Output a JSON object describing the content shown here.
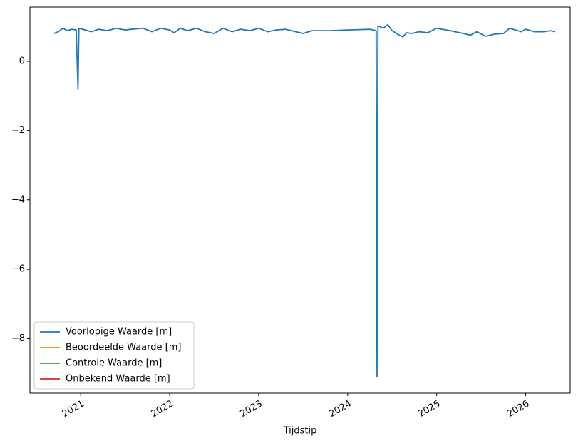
{
  "chart_data": {
    "type": "line",
    "xlabel": "Tijdstip",
    "x": [
      2020.7,
      2020.75,
      2020.8,
      2020.85,
      2020.9,
      2020.95,
      2020.97,
      2020.98,
      2021.05,
      2021.12,
      2021.2,
      2021.3,
      2021.4,
      2021.5,
      2021.6,
      2021.7,
      2021.8,
      2021.9,
      2022.0,
      2022.05,
      2022.12,
      2022.2,
      2022.3,
      2022.4,
      2022.5,
      2022.6,
      2022.7,
      2022.8,
      2022.9,
      2023.0,
      2023.1,
      2023.2,
      2023.3,
      2023.5,
      2023.6,
      2023.8,
      2024.0,
      2024.25,
      2024.32,
      2024.33,
      2024.34,
      2024.4,
      2024.45,
      2024.5,
      2024.58,
      2024.62,
      2024.66,
      2024.72,
      2024.8,
      2024.9,
      2025.0,
      2025.15,
      2025.3,
      2025.38,
      2025.45,
      2025.55,
      2025.65,
      2025.75,
      2025.82,
      2025.95,
      2026.0,
      2026.1,
      2026.2,
      2026.28,
      2026.33
    ],
    "series": [
      {
        "name": "Voorlopige Waarde [m]",
        "color": "#1f77b4",
        "values": [
          0.8,
          0.85,
          0.95,
          0.88,
          0.92,
          0.9,
          -0.8,
          0.95,
          0.9,
          0.85,
          0.92,
          0.88,
          0.95,
          0.9,
          0.93,
          0.95,
          0.85,
          0.95,
          0.9,
          0.82,
          0.95,
          0.88,
          0.95,
          0.85,
          0.8,
          0.95,
          0.85,
          0.92,
          0.88,
          0.95,
          0.85,
          0.9,
          0.92,
          0.8,
          0.88,
          0.88,
          0.9,
          0.92,
          0.88,
          -9.1,
          1.02,
          0.95,
          1.05,
          0.88,
          0.75,
          0.7,
          0.82,
          0.8,
          0.85,
          0.82,
          0.95,
          0.88,
          0.8,
          0.75,
          0.85,
          0.72,
          0.78,
          0.8,
          0.95,
          0.85,
          0.92,
          0.85,
          0.85,
          0.88,
          0.85
        ]
      },
      {
        "name": "Beoordeelde Waarde [m]",
        "color": "#ff7f0e",
        "values": [
          null,
          null,
          null,
          null,
          null,
          null,
          null,
          null,
          null,
          null,
          null,
          null,
          null,
          null,
          null,
          null,
          null,
          null,
          null,
          null,
          null,
          null,
          null,
          null,
          null,
          null,
          null,
          null,
          null,
          null,
          null,
          null,
          null,
          null,
          null,
          null,
          null,
          null,
          null,
          null,
          null,
          null,
          null,
          null,
          null,
          null,
          null,
          null,
          null,
          null,
          null,
          null,
          null,
          null,
          null,
          null,
          null,
          null,
          null,
          null,
          null,
          null,
          null,
          null,
          null
        ]
      },
      {
        "name": "Controle Waarde [m]",
        "color": "#2ca02c",
        "values": [
          null,
          null,
          null,
          null,
          null,
          null,
          null,
          null,
          null,
          null,
          null,
          null,
          null,
          null,
          null,
          null,
          null,
          null,
          null,
          null,
          null,
          null,
          null,
          null,
          null,
          null,
          null,
          null,
          null,
          null,
          null,
          null,
          null,
          null,
          null,
          null,
          null,
          null,
          null,
          null,
          null,
          null,
          null,
          null,
          null,
          null,
          null,
          null,
          null,
          null,
          null,
          null,
          null,
          null,
          null,
          null,
          null,
          null,
          null,
          null,
          null,
          null,
          null,
          null,
          null
        ]
      },
      {
        "name": "Onbekend Waarde [m]",
        "color": "#d62728",
        "values": [
          null,
          null,
          null,
          null,
          null,
          null,
          null,
          null,
          null,
          null,
          null,
          null,
          null,
          null,
          null,
          null,
          null,
          null,
          null,
          null,
          null,
          null,
          null,
          null,
          null,
          null,
          null,
          null,
          null,
          null,
          null,
          null,
          null,
          null,
          null,
          null,
          null,
          null,
          null,
          null,
          null,
          null,
          null,
          null,
          null,
          null,
          null,
          null,
          null,
          null,
          null,
          null,
          null,
          null,
          null,
          null,
          null,
          null,
          null,
          null,
          null,
          null,
          null,
          null,
          null
        ]
      }
    ],
    "xlim": [
      2020.43,
      2026.5
    ],
    "xticks": [
      2021,
      2022,
      2023,
      2024,
      2025,
      2026
    ],
    "ylim": [
      -9.57,
      1.56
    ],
    "yticks": [
      {
        "value": -8,
        "label": "−8"
      },
      {
        "value": -6,
        "label": "−6"
      },
      {
        "value": -4,
        "label": "−4"
      },
      {
        "value": -2,
        "label": "−2"
      },
      0
    ],
    "legend": "lower left"
  }
}
